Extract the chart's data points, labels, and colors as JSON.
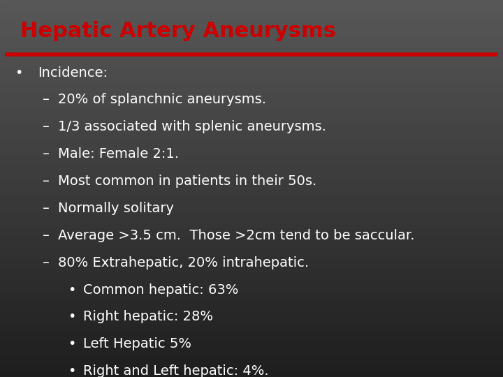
{
  "title": "Hepatic Artery Aneurysms",
  "title_color": "#cc0000",
  "title_fontsize": 22,
  "title_fontweight": "bold",
  "text_color": "#ffffff",
  "line_color": "#cc0000",
  "line_thickness": 4,
  "content": [
    {
      "level": 0,
      "bullet": "•",
      "text": "Incidence:"
    },
    {
      "level": 1,
      "bullet": "–",
      "text": "20% of splanchnic aneurysms."
    },
    {
      "level": 1,
      "bullet": "–",
      "text": "1/3 associated with splenic aneurysms."
    },
    {
      "level": 1,
      "bullet": "–",
      "text": "Male: Female 2:1."
    },
    {
      "level": 1,
      "bullet": "–",
      "text": "Most common in patients in their 50s."
    },
    {
      "level": 1,
      "bullet": "–",
      "text": "Normally solitary"
    },
    {
      "level": 1,
      "bullet": "–",
      "text": "Average >3.5 cm.  Those >2cm tend to be saccular."
    },
    {
      "level": 1,
      "bullet": "–",
      "text": "80% Extrahepatic, 20% intrahepatic."
    },
    {
      "level": 2,
      "bullet": "•",
      "text": "Common hepatic: 63%"
    },
    {
      "level": 2,
      "bullet": "•",
      "text": "Right hepatic: 28%"
    },
    {
      "level": 2,
      "bullet": "•",
      "text": "Left Hepatic 5%"
    },
    {
      "level": 2,
      "bullet": "•",
      "text": "Right and Left hepatic: 4%."
    }
  ],
  "font_family": "DejaVu Sans",
  "content_fontsize": 14,
  "fig_width": 7.2,
  "fig_height": 5.4,
  "dpi": 100
}
